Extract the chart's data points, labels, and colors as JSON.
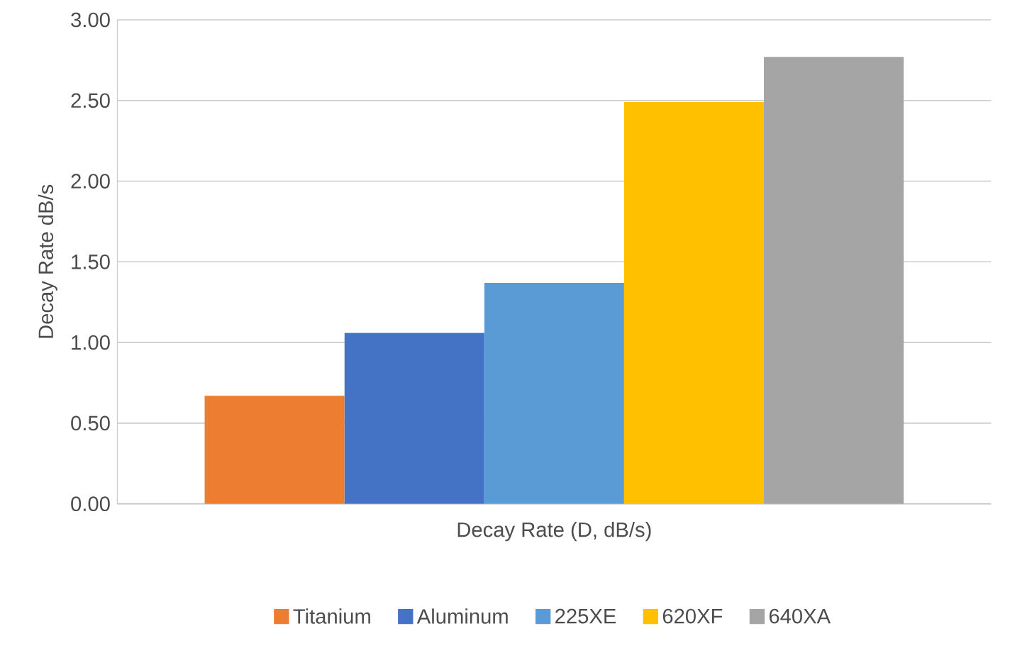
{
  "chart_data": {
    "type": "bar",
    "ylabel": "Decay Rate dB/s",
    "categories": [
      "Decay Rate (D, dB/s)"
    ],
    "series": [
      {
        "name": "Titanium",
        "color": "#ed7d31",
        "values": [
          0.67
        ]
      },
      {
        "name": "Aluminum",
        "color": "#4472c4",
        "values": [
          1.06
        ]
      },
      {
        "name": "225XE",
        "color": "#5b9bd5",
        "values": [
          1.37
        ]
      },
      {
        "name": "620XF",
        "color": "#ffc000",
        "values": [
          2.49
        ]
      },
      {
        "name": "640XA",
        "color": "#a5a5a5",
        "values": [
          2.77
        ]
      }
    ],
    "ylim": [
      0,
      3
    ],
    "yticks": [
      {
        "value": 0,
        "label": "0.00"
      },
      {
        "value": 0.5,
        "label": "0.50"
      },
      {
        "value": 1,
        "label": "1.00"
      },
      {
        "value": 1.5,
        "label": "1.50"
      },
      {
        "value": 2,
        "label": "2.00"
      },
      {
        "value": 2.5,
        "label": "2.50"
      },
      {
        "value": 3,
        "label": "3.00"
      }
    ],
    "grid": "y",
    "legend": "bottom"
  }
}
